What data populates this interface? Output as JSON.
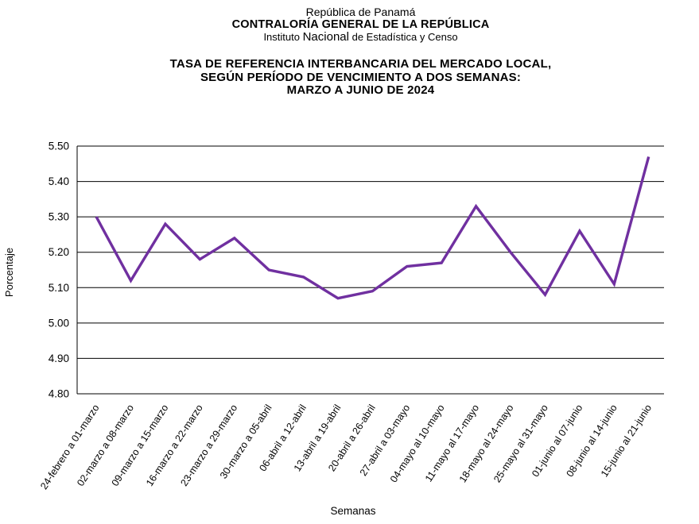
{
  "header": {
    "line1": "República de Panamá",
    "line2": "CONTRALORÍA GENERAL DE LA REPÚBLICA",
    "line3_prefix": "Instituto",
    "line3_emphasis": "Nacional",
    "line3_suffix": "de Estadística y Censo"
  },
  "title": {
    "line1": "TASA DE REFERENCIA INTERBANCARIA DEL MERCADO LOCAL,",
    "line2": "SEGÚN PERÍODO DE VENCIMIENTO A DOS SEMANAS:",
    "line3": "MARZO A JUNIO DE 2024"
  },
  "chart_data": {
    "type": "line",
    "title": "TASA DE REFERENCIA INTERBANCARIA DEL MERCADO LOCAL, SEGÚN PERÍODO DE VENCIMIENTO A DOS SEMANAS: MARZO A JUNIO DE 2024",
    "xlabel": "Semanas",
    "ylabel": "Porcentaje",
    "ylim": [
      4.8,
      5.5
    ],
    "ytick_step": 0.1,
    "ytick_decimals": 2,
    "grid": true,
    "legend": "none",
    "line_color": "#7030A0",
    "axis_color": "#000000",
    "categories": [
      "24-febrero a 01-marzo",
      "02-marzo a 08-marzo",
      "09-marzo a 15-marzo",
      "16-marzo a 22-marzo",
      "23-marzo a 29-marzo",
      "30-marzo a 05-abril",
      "06-abril a 12-abril",
      "13-abril a 19-abril",
      "20-abril a 26-abril",
      "27-abril a 03-mayo",
      "04-mayo al 10-mayo",
      "11-mayo al 17-mayo",
      "18-mayo al 24-mayo",
      "25-mayo al 31-mayo",
      "01-junio al 07-junio",
      "08-junio al 14-junio",
      "15-junio al 21-junio"
    ],
    "values": [
      5.3,
      5.12,
      5.28,
      5.18,
      5.24,
      5.15,
      5.13,
      5.07,
      5.09,
      5.16,
      5.17,
      5.33,
      5.2,
      5.08,
      5.26,
      5.11,
      5.47
    ]
  }
}
